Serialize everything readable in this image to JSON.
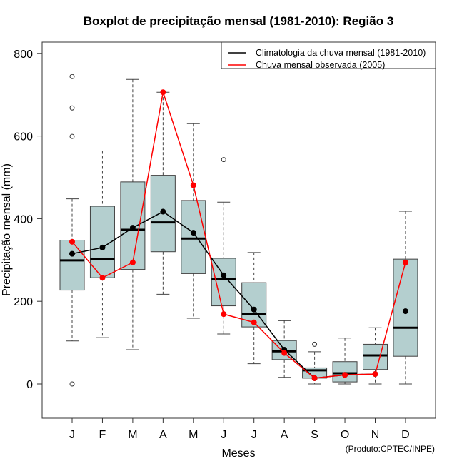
{
  "chart_data": {
    "type": "boxplot",
    "title": "Boxplot de precipitação mensal (1981-2010): Região 3",
    "xlabel": "Meses",
    "ylabel": "Precipitação mensal (mm)",
    "credit": "(Produto:CPTEC/INPE)",
    "ylim": [
      -85,
      820
    ],
    "yticks": [
      0,
      200,
      400,
      600,
      800
    ],
    "ytick_labels": [
      "0",
      "200",
      "400",
      "600",
      "800"
    ],
    "categories": [
      "J",
      "F",
      "M",
      "A",
      "M",
      "J",
      "J",
      "A",
      "S",
      "O",
      "N",
      "D"
    ],
    "box_fill": "#b4cfcf",
    "boxes": [
      {
        "month": "J",
        "whisker_low": 104,
        "q1": 227,
        "median": 299,
        "q3": 348,
        "whisker_high": 448,
        "outliers": [
          0,
          599,
          668,
          744
        ]
      },
      {
        "month": "F",
        "whisker_low": 112,
        "q1": 257,
        "median": 302,
        "q3": 430,
        "whisker_high": 564,
        "outliers": []
      },
      {
        "month": "M",
        "whisker_low": 83,
        "q1": 277,
        "median": 373,
        "q3": 489,
        "whisker_high": 737,
        "outliers": []
      },
      {
        "month": "A",
        "whisker_low": 217,
        "q1": 320,
        "median": 391,
        "q3": 505,
        "whisker_high": 706,
        "outliers": []
      },
      {
        "month": "M",
        "whisker_low": 159,
        "q1": 267,
        "median": 352,
        "q3": 444,
        "whisker_high": 630,
        "outliers": []
      },
      {
        "month": "J",
        "whisker_low": 121,
        "q1": 189,
        "median": 253,
        "q3": 304,
        "whisker_high": 440,
        "outliers": [
          543
        ]
      },
      {
        "month": "J",
        "whisker_low": 49,
        "q1": 138,
        "median": 169,
        "q3": 245,
        "whisker_high": 318,
        "outliers": []
      },
      {
        "month": "A",
        "whisker_low": 16,
        "q1": 59,
        "median": 79,
        "q3": 105,
        "whisker_high": 153,
        "outliers": []
      },
      {
        "month": "S",
        "whisker_low": 0,
        "q1": 14,
        "median": 33,
        "q3": 39,
        "whisker_high": 78,
        "outliers": [
          96
        ]
      },
      {
        "month": "O",
        "whisker_low": 0,
        "q1": 5,
        "median": 26,
        "q3": 54,
        "whisker_high": 111,
        "outliers": []
      },
      {
        "month": "N",
        "whisker_low": 0,
        "q1": 35,
        "median": 69,
        "q3": 96,
        "whisker_high": 136,
        "outliers": []
      },
      {
        "month": "D",
        "whisker_low": 0,
        "q1": 67,
        "median": 136,
        "q3": 302,
        "whisker_high": 418,
        "outliers": []
      }
    ],
    "series": [
      {
        "name": "Climatologia da chuva mensal (1981-2010)",
        "color": "#000000",
        "values": [
          315,
          330,
          378,
          417,
          366,
          263,
          180,
          83,
          14,
          22,
          24,
          176
        ],
        "connected_through_index": 10
      },
      {
        "name": "Chuva mensal observada (2005)",
        "color": "#ff0000",
        "values": [
          344,
          257,
          294,
          706,
          481,
          169,
          149,
          75,
          14,
          22,
          24,
          294
        ],
        "connected_through_index": 11
      }
    ],
    "legend": {
      "placement": "top-right",
      "entries": [
        {
          "label": "Climatologia da chuva mensal (1981-2010)",
          "color": "#000000"
        },
        {
          "label": "Chuva mensal observada (2005)",
          "color": "#ff0000"
        }
      ]
    },
    "grid": false
  }
}
